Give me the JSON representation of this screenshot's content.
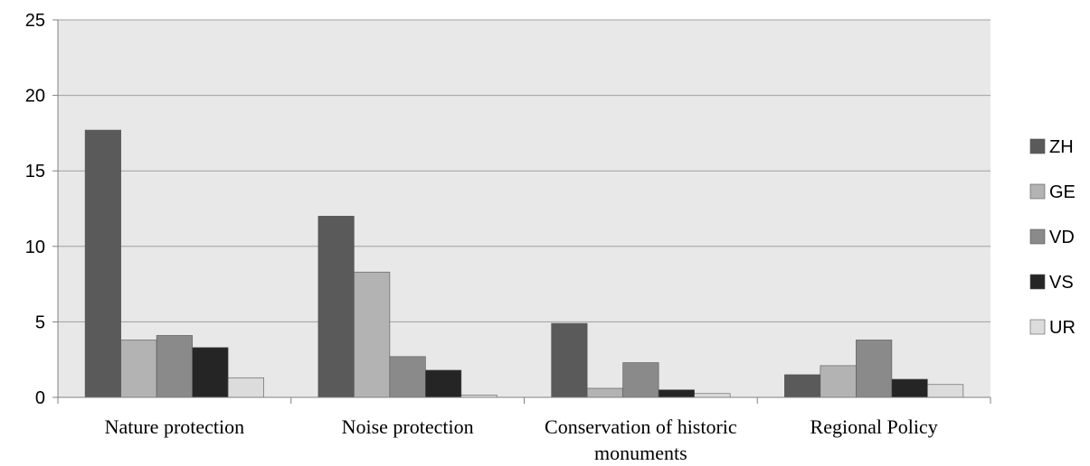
{
  "chart_data": {
    "type": "bar",
    "title": "",
    "xlabel": "",
    "ylabel": "",
    "ylim": [
      0,
      25
    ],
    "yticks": [
      0,
      5,
      10,
      15,
      20,
      25
    ],
    "grid": true,
    "legend_position": "right",
    "categories": [
      [
        "Nature protection"
      ],
      [
        "Noise protection"
      ],
      [
        "Conservation of historic",
        "monuments"
      ],
      [
        "Regional Policy"
      ]
    ],
    "series": [
      {
        "name": "ZH",
        "color": "#5a5a5a",
        "values": [
          17.7,
          12.0,
          4.9,
          1.5
        ]
      },
      {
        "name": "GE",
        "color": "#b3b3b3",
        "values": [
          3.8,
          8.3,
          0.6,
          2.1
        ]
      },
      {
        "name": "VD",
        "color": "#8a8a8a",
        "values": [
          4.1,
          2.7,
          2.3,
          3.8
        ]
      },
      {
        "name": "VS",
        "color": "#252525",
        "values": [
          3.3,
          1.8,
          0.5,
          1.2
        ]
      },
      {
        "name": "UR",
        "color": "#dcdcdc",
        "values": [
          1.3,
          0.15,
          0.25,
          0.85
        ]
      }
    ],
    "plot_background": "#e8e8e8",
    "grid_color": "#a0a0a0"
  }
}
